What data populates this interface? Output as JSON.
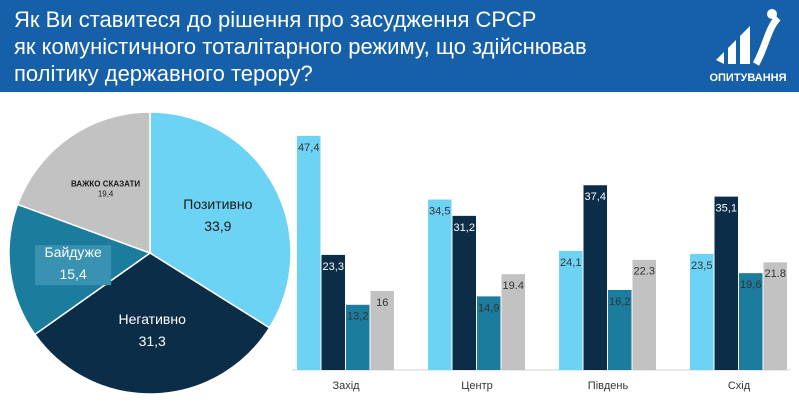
{
  "header": {
    "title": "Як Ви ставитеся до рішення про засудження СРСР\nяк  комуністичного тоталітарного режиму, що здійснював\nполітику державного терору?",
    "logo_text": "ОПИТУВАННЯ"
  },
  "chart_data": [
    {
      "type": "pie",
      "categories": [
        "Позитивно",
        "Негативно",
        "Байдуже",
        "ВАЖКО СКАЗАТИ"
      ],
      "values": [
        33.9,
        31.3,
        15.4,
        19.4
      ],
      "value_labels": [
        "33,9",
        "31,3",
        "15,4",
        "19,4"
      ],
      "colors": [
        "#6dd3f5",
        "#0c2d48",
        "#1b7c9e",
        "#c2c2c2"
      ]
    },
    {
      "type": "bar",
      "categories": [
        "Захід",
        "Центр",
        "Південь",
        "Схід"
      ],
      "ylim": [
        0,
        50
      ],
      "series": [
        {
          "color": "#6dd3f5",
          "values": [
            47.4,
            34.5,
            24.1,
            23.5
          ],
          "value_labels": [
            "47,4",
            "34,5",
            "24,1",
            "23,5"
          ]
        },
        {
          "color": "#0c2d48",
          "values": [
            23.3,
            31.2,
            37.4,
            35.1
          ],
          "value_labels": [
            "23,3",
            "31,2",
            "37,4",
            "35,1"
          ]
        },
        {
          "color": "#1b7c9e",
          "values": [
            13.2,
            14.9,
            16.2,
            19.6
          ],
          "value_labels": [
            "13,2",
            "14,9",
            "16,2",
            "19,6"
          ]
        },
        {
          "color": "#c2c2c2",
          "values": [
            16,
            19.4,
            22.3,
            21.8
          ]
        }
      ]
    }
  ]
}
